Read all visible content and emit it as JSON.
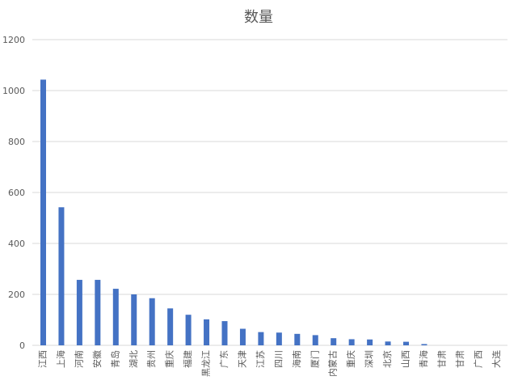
{
  "chart_data": {
    "type": "bar",
    "title": "数量",
    "xlabel": "",
    "ylabel": "",
    "ylim": [
      0,
      1200
    ],
    "yticks": [
      0,
      200,
      400,
      600,
      800,
      1000,
      1200
    ],
    "grid": true,
    "legend": "none",
    "bar_color": "#4472C4",
    "grid_color": "#D9D9D9",
    "categories": [
      "江西",
      "上海",
      "河南",
      "安徽",
      "青岛",
      "湖北",
      "贵州",
      "重庆",
      "福建",
      "黑龙江",
      "广东",
      "天津",
      "江苏",
      "四川",
      "海南",
      "厦门",
      "内蒙古",
      "重庆",
      "深圳",
      "北京",
      "山西",
      "青海",
      "甘肃",
      "甘肃",
      "广西",
      "大连"
    ],
    "values": [
      1043,
      542,
      257,
      257,
      222,
      200,
      185,
      145,
      120,
      102,
      95,
      65,
      52,
      50,
      45,
      40,
      28,
      24,
      23,
      15,
      14,
      5,
      0,
      0,
      0,
      0
    ]
  }
}
